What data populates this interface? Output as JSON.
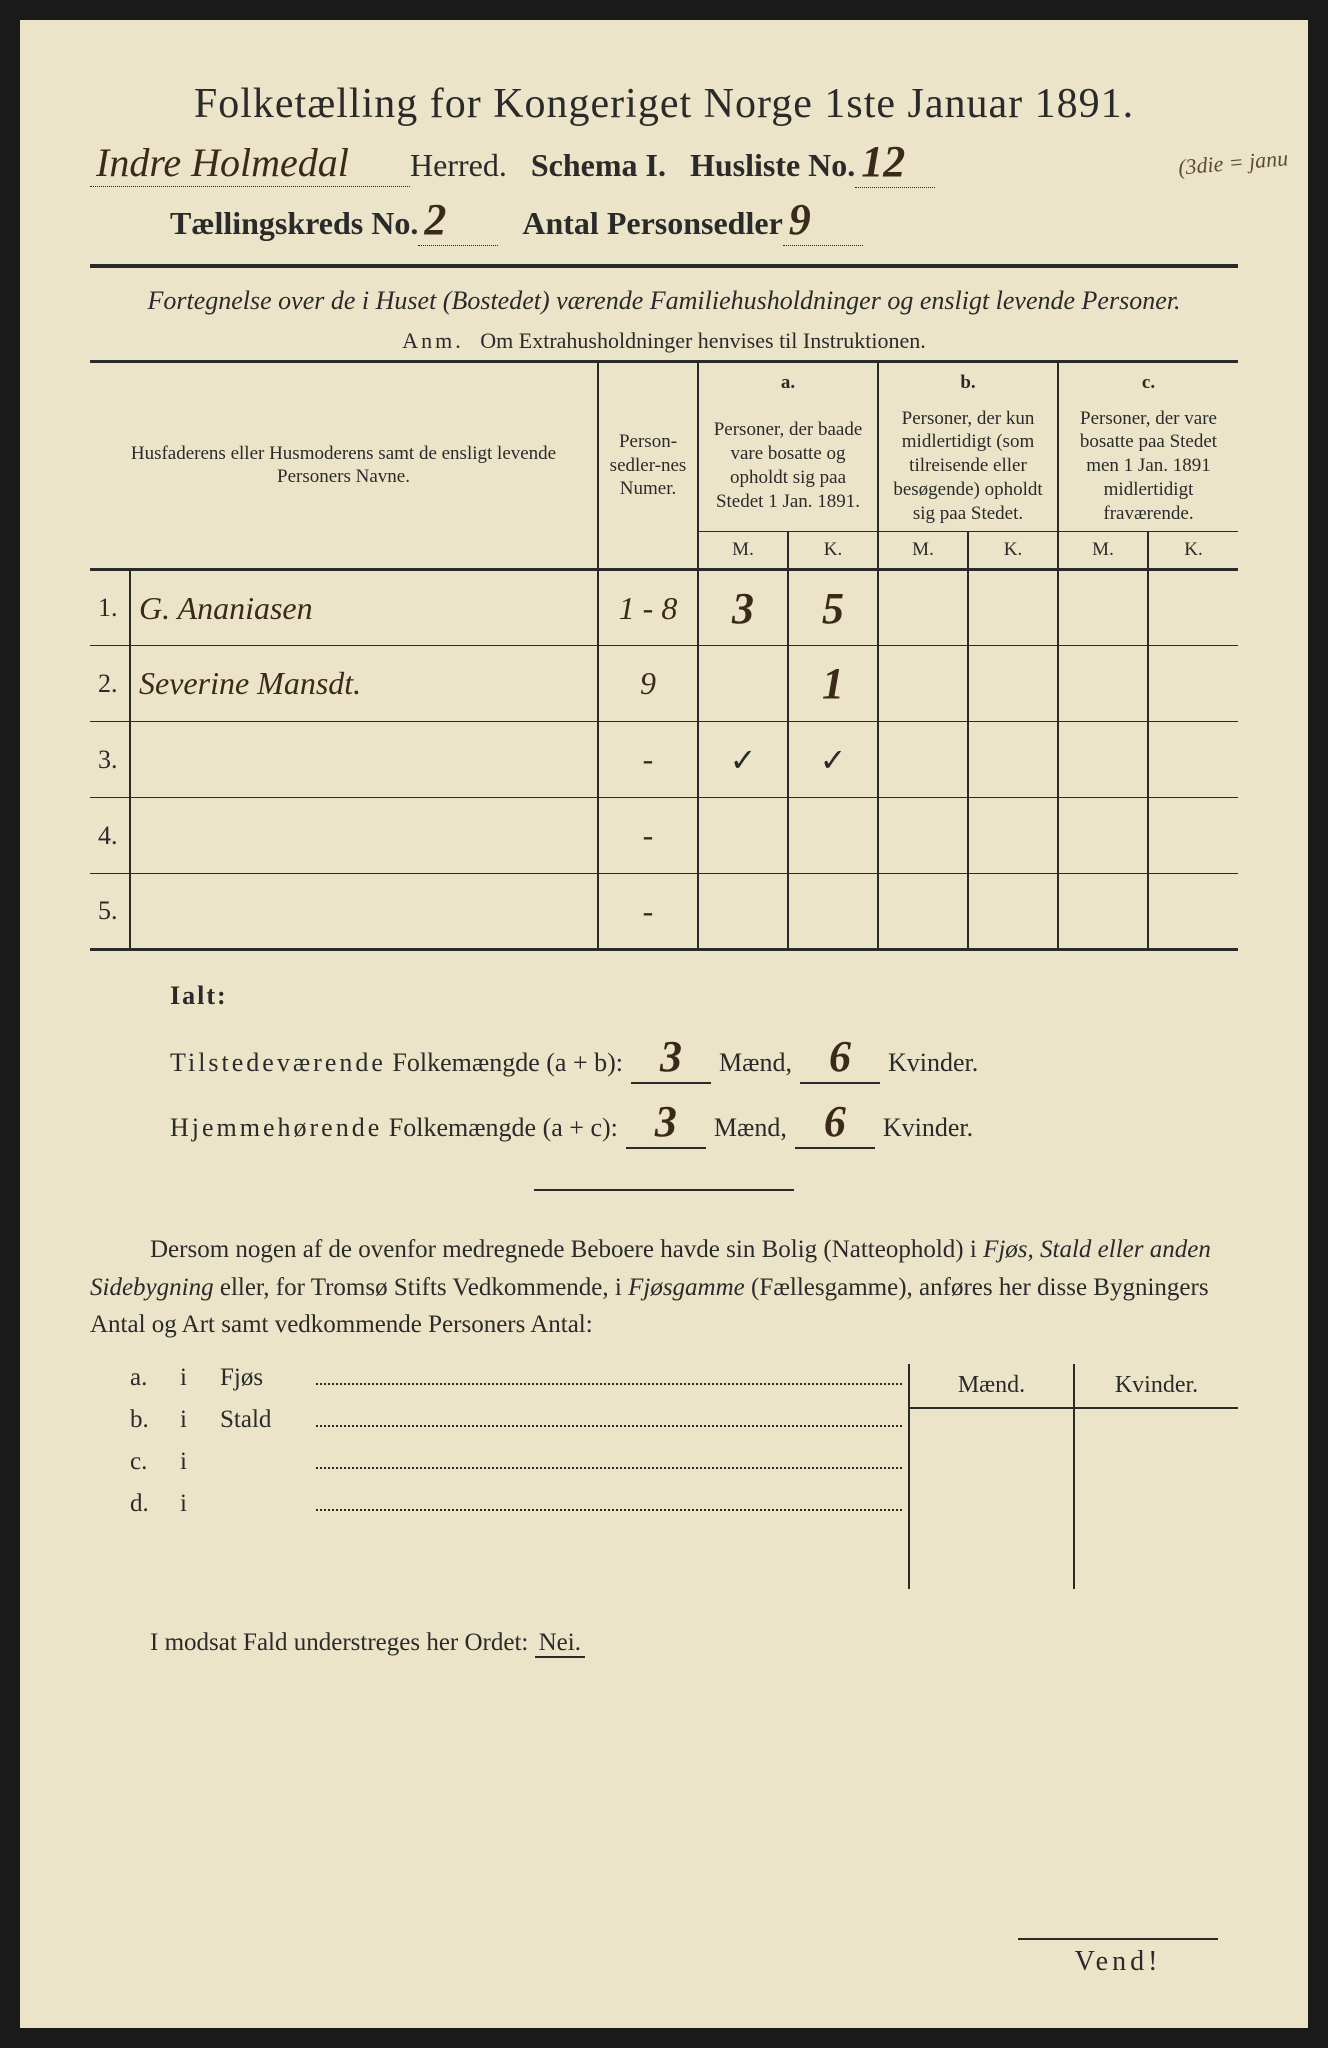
{
  "title": "Folketælling for Kongeriget Norge 1ste Januar 1891.",
  "header": {
    "herred_hw": "Indre Holmedal",
    "herred_label": "Herred.",
    "schema_label": "Schema I.",
    "husliste_label": "Husliste No.",
    "husliste_hw": "12",
    "margin_note": "(3die = janu",
    "kreds_label": "Tællingskreds No.",
    "kreds_hw": "2",
    "antal_label": "Antal Personsedler",
    "antal_hw": "9"
  },
  "subtitle": "Fortegnelse over de i Huset (Bostedet) værende Familiehusholdninger og ensligt levende Personer.",
  "anm": {
    "prefix": "Anm.",
    "text": "Om Extrahusholdninger henvises til Instruktionen."
  },
  "table": {
    "col_names": "Husfaderens eller Husmoderens samt de ensligt levende Personers Navne.",
    "col_num": "Person-sedler-nes Numer.",
    "col_a_head": "a.",
    "col_a": "Personer, der baade vare bosatte og opholdt sig paa Stedet 1 Jan. 1891.",
    "col_b_head": "b.",
    "col_b": "Personer, der kun midlertidigt (som tilreisende eller besøgende) opholdt sig paa Stedet.",
    "col_c_head": "c.",
    "col_c": "Personer, der vare bosatte paa Stedet men 1 Jan. 1891 midlertidigt fraværende.",
    "m": "M.",
    "k": "K.",
    "rows": [
      {
        "n": "1.",
        "name_hw": "G. Ananiasen",
        "num_hw": "1 - 8",
        "a_m": "3",
        "a_k": "5",
        "b_m": "",
        "b_k": "",
        "c_m": "",
        "c_k": ""
      },
      {
        "n": "2.",
        "name_hw": "Severine Mansdt.",
        "num_hw": "9",
        "a_m": "",
        "a_k": "1",
        "b_m": "",
        "b_k": "",
        "c_m": "",
        "c_k": ""
      },
      {
        "n": "3.",
        "name_hw": "",
        "num_hw": "-",
        "a_m": "✓",
        "a_k": "✓",
        "b_m": "",
        "b_k": "",
        "c_m": "",
        "c_k": ""
      },
      {
        "n": "4.",
        "name_hw": "",
        "num_hw": "-",
        "a_m": "",
        "a_k": "",
        "b_m": "",
        "b_k": "",
        "c_m": "",
        "c_k": ""
      },
      {
        "n": "5.",
        "name_hw": "",
        "num_hw": "-",
        "a_m": "",
        "a_k": "",
        "b_m": "",
        "b_k": "",
        "c_m": "",
        "c_k": ""
      }
    ]
  },
  "ialt": {
    "title": "Ialt:",
    "line1_label": "Tilstedeværende",
    "line1_label2": "Folkemængde (a + b):",
    "line1_m": "3",
    "line1_k": "6",
    "line2_label": "Hjemmehørende",
    "line2_label2": "Folkemængde (a + c):",
    "line2_m": "3",
    "line2_k": "6",
    "maend": "Mænd,",
    "kvinder": "Kvinder."
  },
  "paragraph": "Dersom nogen af de ovenfor medregnede Beboere havde sin Bolig (Natteophold) i Fjøs, Stald eller anden Sidebygning eller, for Tromsø Stifts Vedkommende, i Fjøsgamme (Fællesgamme), anføres her disse Bygningers Antal og Art samt vedkommende Personers Antal:",
  "side": {
    "maend": "Mænd.",
    "kvinder": "Kvinder.",
    "rows": [
      {
        "lbl": "a.",
        "i": "i",
        "word": "Fjøs"
      },
      {
        "lbl": "b.",
        "i": "i",
        "word": "Stald"
      },
      {
        "lbl": "c.",
        "i": "i",
        "word": ""
      },
      {
        "lbl": "d.",
        "i": "i",
        "word": ""
      }
    ]
  },
  "nei_line": "I modsat Fald understreges her Ordet:",
  "nei": "Nei.",
  "footer": "Vend!",
  "colors": {
    "paper": "#ebe4c8",
    "ink": "#2a2a2a",
    "handwriting": "#3a2a1a"
  }
}
